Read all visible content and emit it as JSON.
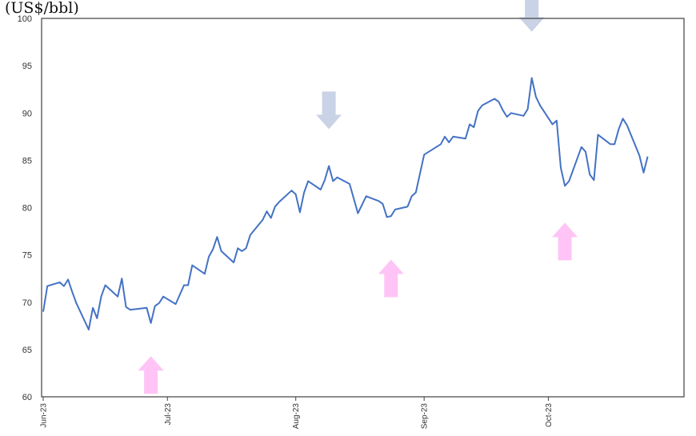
{
  "unit_label": "(US$/bbl)",
  "chart_data": {
    "type": "line",
    "ylim": [
      60,
      100
    ],
    "y_ticks": [
      60,
      65,
      70,
      75,
      80,
      85,
      90,
      95,
      100
    ],
    "x_ticks": [
      {
        "label": "Jun-23",
        "date": "2023-06-01"
      },
      {
        "label": "Jul-23",
        "date": "2023-07-01"
      },
      {
        "label": "Aug-23",
        "date": "2023-08-01"
      },
      {
        "label": "Sep-23",
        "date": "2023-09-01"
      },
      {
        "label": "Oct-23",
        "date": "2023-10-01"
      }
    ],
    "xlim": [
      "2023-06-01",
      "2023-10-27"
    ],
    "line_color": "#4472C4",
    "grid": false,
    "series": [
      {
        "points": [
          [
            "2023-06-01",
            69.0
          ],
          [
            "2023-06-02",
            71.7
          ],
          [
            "2023-06-05",
            72.1
          ],
          [
            "2023-06-06",
            71.7
          ],
          [
            "2023-06-07",
            72.4
          ],
          [
            "2023-06-08",
            71.1
          ],
          [
            "2023-06-09",
            69.9
          ],
          [
            "2023-06-12",
            67.1
          ],
          [
            "2023-06-13",
            69.4
          ],
          [
            "2023-06-14",
            68.3
          ],
          [
            "2023-06-15",
            70.6
          ],
          [
            "2023-06-16",
            71.8
          ],
          [
            "2023-06-19",
            70.6
          ],
          [
            "2023-06-20",
            72.5
          ],
          [
            "2023-06-21",
            69.5
          ],
          [
            "2023-06-22",
            69.2
          ],
          [
            "2023-06-26",
            69.4
          ],
          [
            "2023-06-27",
            67.8
          ],
          [
            "2023-06-28",
            69.6
          ],
          [
            "2023-06-29",
            69.9
          ],
          [
            "2023-06-30",
            70.6
          ],
          [
            "2023-07-03",
            69.8
          ],
          [
            "2023-07-05",
            71.8
          ],
          [
            "2023-07-06",
            71.8
          ],
          [
            "2023-07-07",
            73.9
          ],
          [
            "2023-07-10",
            73.0
          ],
          [
            "2023-07-11",
            74.8
          ],
          [
            "2023-07-12",
            75.6
          ],
          [
            "2023-07-13",
            76.9
          ],
          [
            "2023-07-14",
            75.4
          ],
          [
            "2023-07-17",
            74.2
          ],
          [
            "2023-07-18",
            75.7
          ],
          [
            "2023-07-19",
            75.4
          ],
          [
            "2023-07-20",
            75.7
          ],
          [
            "2023-07-21",
            77.1
          ],
          [
            "2023-07-24",
            78.7
          ],
          [
            "2023-07-25",
            79.6
          ],
          [
            "2023-07-26",
            78.9
          ],
          [
            "2023-07-27",
            80.1
          ],
          [
            "2023-07-28",
            80.6
          ],
          [
            "2023-07-31",
            81.8
          ],
          [
            "2023-08-01",
            81.4
          ],
          [
            "2023-08-02",
            79.5
          ],
          [
            "2023-08-03",
            81.6
          ],
          [
            "2023-08-04",
            82.8
          ],
          [
            "2023-08-07",
            81.9
          ],
          [
            "2023-08-08",
            82.9
          ],
          [
            "2023-08-09",
            84.4
          ],
          [
            "2023-08-10",
            82.8
          ],
          [
            "2023-08-11",
            83.2
          ],
          [
            "2023-08-14",
            82.5
          ],
          [
            "2023-08-16",
            79.4
          ],
          [
            "2023-08-18",
            81.2
          ],
          [
            "2023-08-21",
            80.7
          ],
          [
            "2023-08-22",
            80.4
          ],
          [
            "2023-08-23",
            79.0
          ],
          [
            "2023-08-24",
            79.1
          ],
          [
            "2023-08-25",
            79.8
          ],
          [
            "2023-08-28",
            80.1
          ],
          [
            "2023-08-29",
            81.2
          ],
          [
            "2023-08-30",
            81.6
          ],
          [
            "2023-08-31",
            83.6
          ],
          [
            "2023-09-01",
            85.6
          ],
          [
            "2023-09-05",
            86.7
          ],
          [
            "2023-09-06",
            87.5
          ],
          [
            "2023-09-07",
            86.9
          ],
          [
            "2023-09-08",
            87.5
          ],
          [
            "2023-09-11",
            87.3
          ],
          [
            "2023-09-12",
            88.8
          ],
          [
            "2023-09-13",
            88.5
          ],
          [
            "2023-09-14",
            90.2
          ],
          [
            "2023-09-15",
            90.8
          ],
          [
            "2023-09-18",
            91.5
          ],
          [
            "2023-09-19",
            91.2
          ],
          [
            "2023-09-20",
            90.3
          ],
          [
            "2023-09-21",
            89.6
          ],
          [
            "2023-09-22",
            90.0
          ],
          [
            "2023-09-25",
            89.7
          ],
          [
            "2023-09-26",
            90.4
          ],
          [
            "2023-09-27",
            93.7
          ],
          [
            "2023-09-28",
            91.7
          ],
          [
            "2023-09-29",
            90.8
          ],
          [
            "2023-10-02",
            88.8
          ],
          [
            "2023-10-03",
            89.2
          ],
          [
            "2023-10-04",
            84.2
          ],
          [
            "2023-10-05",
            82.3
          ],
          [
            "2023-10-06",
            82.8
          ],
          [
            "2023-10-09",
            86.4
          ],
          [
            "2023-10-10",
            85.9
          ],
          [
            "2023-10-11",
            83.5
          ],
          [
            "2023-10-12",
            82.9
          ],
          [
            "2023-10-13",
            87.7
          ],
          [
            "2023-10-16",
            86.7
          ],
          [
            "2023-10-17",
            86.7
          ],
          [
            "2023-10-18",
            88.3
          ],
          [
            "2023-10-19",
            89.4
          ],
          [
            "2023-10-20",
            88.7
          ],
          [
            "2023-10-23",
            85.5
          ],
          [
            "2023-10-24",
            83.7
          ],
          [
            "2023-10-25",
            85.4
          ]
        ]
      }
    ],
    "annotations": [
      {
        "type": "arrow",
        "direction": "up",
        "color": "#FFC4F5",
        "date": "2023-06-27",
        "value": 64.3
      },
      {
        "type": "arrow",
        "direction": "down",
        "color": "#C9D3E5",
        "date": "2023-08-09",
        "value": 88.3
      },
      {
        "type": "arrow",
        "direction": "up",
        "color": "#FFC4F5",
        "date": "2023-08-24",
        "value": 74.5
      },
      {
        "type": "arrow",
        "direction": "down",
        "color": "#C9D3E5",
        "date": "2023-09-27",
        "value": 98.6
      },
      {
        "type": "arrow",
        "direction": "up",
        "color": "#FFC4F5",
        "date": "2023-10-05",
        "value": 78.4
      }
    ]
  }
}
